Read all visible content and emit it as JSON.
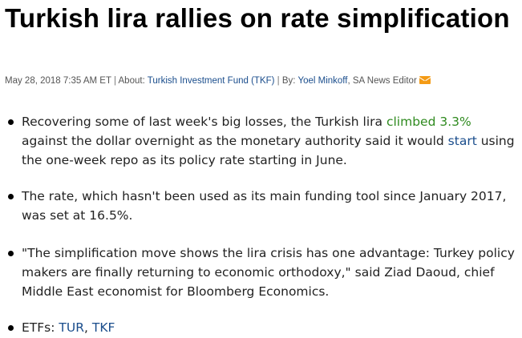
{
  "article": {
    "headline": "Turkish lira rallies on rate simplification",
    "meta": {
      "timestamp": "May 28, 2018 7:35 AM ET",
      "about_prefix": "About: ",
      "about_link": "Turkish Investment Fund (TKF)",
      "by_prefix": "By: ",
      "author": "Yoel Minkoff",
      "author_role": ", SA News Editor",
      "separator": " | ",
      "email_icon": "envelope-icon"
    },
    "bullets": [
      {
        "text_before": "Recovering some of last week's big losses, the Turkish lira ",
        "link1": "climbed 3.3%",
        "text_middle": " against the dollar overnight as the monetary authority said it would ",
        "link2": "start",
        "text_after": " using the one-week repo as its policy rate starting in June."
      },
      {
        "text": "The rate, which hasn't been used as its main funding tool since January 2017, was set at 16.5%."
      },
      {
        "text": "\"The simplification move shows the lira crisis has one advantage: Turkey policy makers are finally returning to economic orthodoxy,\" said Ziad Daoud, chief Middle East economist for Bloomberg Economics."
      },
      {
        "prefix": "ETFs: ",
        "etf1": "TUR",
        "comma": ", ",
        "etf2": "TKF"
      }
    ],
    "colors": {
      "link_blue": "#1a4d8c",
      "link_green": "#2f8a1f",
      "email_orange": "#f49b16"
    }
  }
}
